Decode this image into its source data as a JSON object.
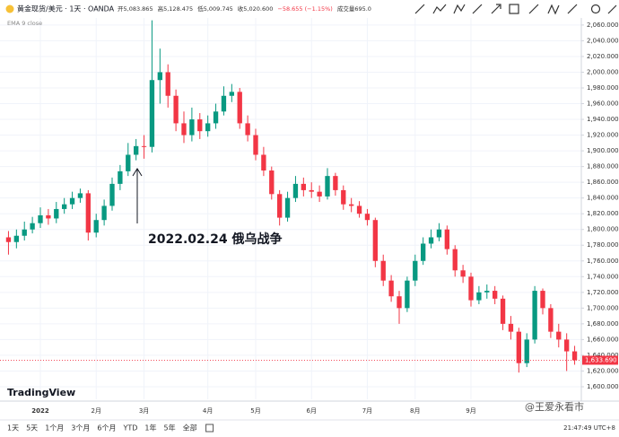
{
  "header": {
    "symbol": "黄金现货/美元 · 1天 · OANDA",
    "ohlc_legend": [
      "开5,083.865",
      "高5,128.475",
      "低5,009.745",
      "收5,020.600",
      "−58.655 (−1.15%)",
      "成交量695.0"
    ],
    "indicator": "EMA 9 close"
  },
  "footer": {
    "logo": "TradingView",
    "watermark": "@王爱永看市",
    "timeframes": [
      "1天",
      "5天",
      "1个月",
      "3个月",
      "6个月",
      "YTD",
      "1年",
      "5年",
      "全部"
    ],
    "clock": "21:47:49 UTC+8"
  },
  "chart_data": {
    "type": "candlestick",
    "annotation": "2022.02.24 俄乌战争",
    "up_color": "#089981",
    "down_color": "#f23645",
    "grid": true,
    "categories": [
      null,
      null,
      null,
      null,
      "2022",
      null,
      null,
      null,
      null,
      null,
      null,
      "2月",
      null,
      null,
      null,
      null,
      null,
      "3月",
      null,
      null,
      null,
      null,
      null,
      null,
      null,
      "4月",
      null,
      null,
      null,
      null,
      null,
      "5月",
      null,
      null,
      null,
      null,
      null,
      null,
      "6月",
      null,
      null,
      null,
      null,
      null,
      null,
      "7月",
      null,
      null,
      null,
      null,
      null,
      "8月",
      null,
      null,
      null,
      null,
      null,
      null,
      "9月",
      null,
      null,
      null,
      null,
      null,
      null,
      null,
      null,
      null,
      null,
      null,
      null,
      null
    ],
    "open": [
      1790,
      1784,
      1792,
      1800,
      1808,
      1818,
      1814,
      1826,
      1832,
      1840,
      1846,
      1796,
      1812,
      1830,
      1858,
      1874,
      1895,
      1906,
      1905,
      1990,
      2000,
      1970,
      1935,
      1920,
      1940,
      1925,
      1935,
      1950,
      1970,
      1975,
      1935,
      1920,
      1895,
      1875,
      1845,
      1815,
      1840,
      1858,
      1850,
      1848,
      1842,
      1868,
      1850,
      1832,
      1830,
      1820,
      1812,
      1760,
      1735,
      1715,
      1700,
      1735,
      1760,
      1782,
      1790,
      1800,
      1775,
      1748,
      1740,
      1710,
      1720,
      1722,
      1712,
      1680,
      1670,
      1630,
      1660,
      1722,
      1700,
      1670,
      1660,
      1645
    ],
    "high": [
      1798,
      1800,
      1810,
      1816,
      1828,
      1826,
      1835,
      1840,
      1848,
      1852,
      1850,
      1820,
      1838,
      1866,
      1882,
      1910,
      1915,
      1920,
      2066,
      2030,
      2010,
      1978,
      1950,
      1955,
      1948,
      1945,
      1960,
      1982,
      1985,
      1980,
      1945,
      1928,
      1905,
      1880,
      1850,
      1848,
      1868,
      1866,
      1860,
      1856,
      1878,
      1872,
      1856,
      1840,
      1836,
      1826,
      1815,
      1768,
      1742,
      1722,
      1740,
      1768,
      1790,
      1800,
      1808,
      1805,
      1780,
      1755,
      1745,
      1728,
      1730,
      1728,
      1716,
      1690,
      1675,
      1668,
      1728,
      1725,
      1705,
      1680,
      1668,
      1652
    ],
    "low": [
      1768,
      1776,
      1786,
      1795,
      1802,
      1806,
      1808,
      1820,
      1826,
      1834,
      1786,
      1790,
      1805,
      1824,
      1850,
      1868,
      1888,
      1890,
      1898,
      1960,
      1955,
      1925,
      1910,
      1912,
      1915,
      1918,
      1928,
      1945,
      1962,
      1928,
      1912,
      1888,
      1868,
      1838,
      1805,
      1810,
      1835,
      1842,
      1840,
      1835,
      1838,
      1843,
      1825,
      1822,
      1815,
      1805,
      1752,
      1728,
      1708,
      1680,
      1695,
      1728,
      1755,
      1776,
      1785,
      1768,
      1740,
      1732,
      1702,
      1705,
      1712,
      1705,
      1672,
      1660,
      1618,
      1625,
      1655,
      1692,
      1662,
      1650,
      1620,
      1628
    ],
    "close": [
      1784,
      1792,
      1800,
      1808,
      1818,
      1814,
      1826,
      1832,
      1840,
      1846,
      1796,
      1812,
      1830,
      1858,
      1874,
      1895,
      1906,
      1905,
      1990,
      2000,
      1970,
      1935,
      1920,
      1940,
      1925,
      1935,
      1950,
      1970,
      1975,
      1935,
      1920,
      1895,
      1875,
      1845,
      1815,
      1840,
      1858,
      1850,
      1848,
      1842,
      1868,
      1850,
      1832,
      1830,
      1820,
      1812,
      1760,
      1735,
      1715,
      1700,
      1735,
      1760,
      1782,
      1790,
      1800,
      1775,
      1748,
      1740,
      1710,
      1720,
      1722,
      1712,
      1680,
      1670,
      1630,
      1660,
      1722,
      1700,
      1670,
      1660,
      1645,
      1633.69
    ],
    "last_price": {
      "value": 1633.69,
      "label": "1,633.690"
    },
    "ylim": [
      1584,
      2069
    ],
    "yticks": [
      {
        "value": 1600,
        "label": "1,600.000"
      },
      {
        "value": 1620,
        "label": "1,620.000"
      },
      {
        "value": 1640,
        "label": "1,640.000"
      },
      {
        "value": 1660,
        "label": "1,660.000"
      },
      {
        "value": 1680,
        "label": "1,680.000"
      },
      {
        "value": 1700,
        "label": "1,700.000"
      },
      {
        "value": 1720,
        "label": "1,720.000"
      },
      {
        "value": 1740,
        "label": "1,740.000"
      },
      {
        "value": 1760,
        "label": "1,760.000"
      },
      {
        "value": 1780,
        "label": "1,780.000"
      },
      {
        "value": 1800,
        "label": "1,800.000"
      },
      {
        "value": 1820,
        "label": "1,820.000"
      },
      {
        "value": 1840,
        "label": "1,840.000"
      },
      {
        "value": 1860,
        "label": "1,860.000"
      },
      {
        "value": 1880,
        "label": "1,880.000"
      },
      {
        "value": 1900,
        "label": "1,900.000"
      },
      {
        "value": 1920,
        "label": "1,920.000"
      },
      {
        "value": 1940,
        "label": "1,940.000"
      },
      {
        "value": 1960,
        "label": "1,960.000"
      },
      {
        "value": 1980,
        "label": "1,980.000"
      },
      {
        "value": 2000,
        "label": "2,000.000"
      },
      {
        "value": 2020,
        "label": "2,020.000"
      },
      {
        "value": 2040,
        "label": "2,040.000"
      },
      {
        "value": 2060,
        "label": "2,060.000"
      }
    ]
  }
}
